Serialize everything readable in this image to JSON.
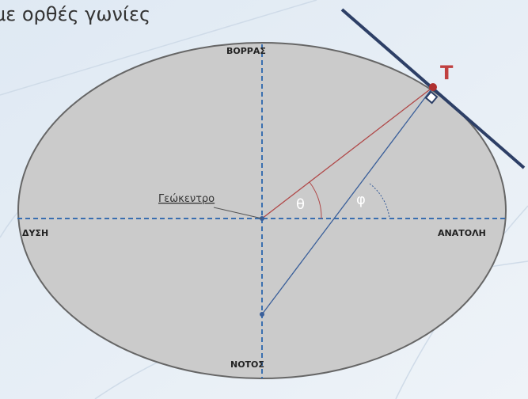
{
  "header": {
    "title": "με ορθές γωνίες"
  },
  "labels": {
    "north": "ΒΟΡΡΑΣ",
    "south": "ΝΟΤΟΣ",
    "west": "ΔΥΣΗ",
    "east": "ΑΝΑΤΟΛΗ",
    "point": "Τ",
    "geocenter": "Γεώκεντρο",
    "theta": "θ",
    "phi": "φ"
  }
}
